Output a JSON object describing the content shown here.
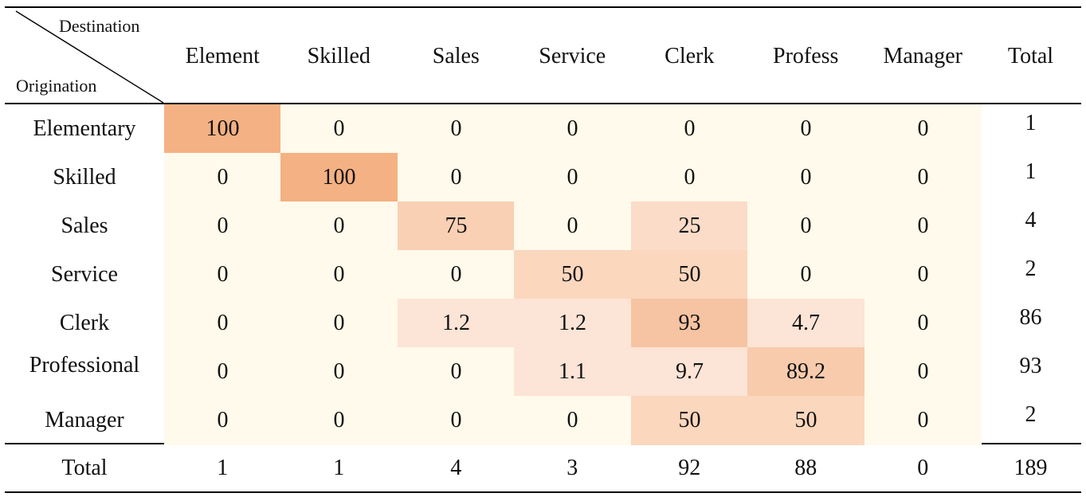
{
  "corner": {
    "top_label": "Destination",
    "bottom_label": "Origination"
  },
  "columns": [
    "Element",
    "Skilled",
    "Sales",
    "Service",
    "Clerk",
    "Profess",
    "Manager",
    "Total"
  ],
  "rows": [
    {
      "label": "Elementary",
      "values": [
        "100",
        "0",
        "0",
        "0",
        "0",
        "0",
        "0"
      ],
      "total": "1"
    },
    {
      "label": "Skilled",
      "values": [
        "0",
        "100",
        "0",
        "0",
        "0",
        "0",
        "0"
      ],
      "total": "1"
    },
    {
      "label": "Sales",
      "values": [
        "0",
        "0",
        "75",
        "0",
        "25",
        "0",
        "0"
      ],
      "total": "4"
    },
    {
      "label": "Service",
      "values": [
        "0",
        "0",
        "0",
        "50",
        "50",
        "0",
        "0"
      ],
      "total": "2"
    },
    {
      "label": "Clerk",
      "values": [
        "0",
        "0",
        "1.2",
        "1.2",
        "93",
        "4.7",
        "0"
      ],
      "total": "86"
    },
    {
      "label": "Professional",
      "values": [
        "0",
        "0",
        "0",
        "1.1",
        "9.7",
        "89.2",
        "0"
      ],
      "total": "93"
    },
    {
      "label": "Manager",
      "values": [
        "0",
        "0",
        "0",
        "0",
        "50",
        "50",
        "0"
      ],
      "total": "2"
    }
  ],
  "footer": {
    "label": "Total",
    "values": [
      "1",
      "1",
      "4",
      "3",
      "92",
      "88",
      "0"
    ],
    "total": "189"
  },
  "heat_colors": {
    "c100": "#f4b183",
    "c93": "#f6c4a2",
    "c89": "#f8cbad",
    "c75": "#f9d0b4",
    "c50": "#fad7bd",
    "c25": "#fbdcc8",
    "low": "#fce4d6",
    "zero": "#fffaeb"
  }
}
